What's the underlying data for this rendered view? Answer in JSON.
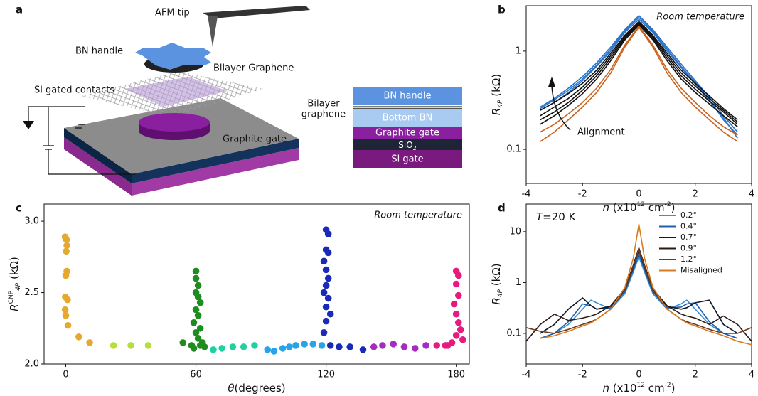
{
  "diagram": {
    "panel": "a",
    "labels": {
      "afm_tip": "AFM tip",
      "bn_handle": "BN handle",
      "bilayer_graphene": "Bilayer Graphene",
      "si_gated_contacts": "Si gated contacts",
      "graphite_gate": "Graphite gate"
    },
    "stack": {
      "bn_handle": "BN handle",
      "bilayer": "Bilayer",
      "graphene": "graphene",
      "bottom_bn": "Bottom BN",
      "graphite_gate": "Graphite gate",
      "sio2": [
        "SiO",
        "2"
      ],
      "si_gate": "Si gate"
    }
  },
  "chart_data": [
    {
      "type": "line",
      "panel": "b",
      "yscale": "log",
      "annotation": "Room temperature",
      "arrow_label": "Alignment",
      "ylabel": {
        "symbol": "R",
        "sub": "4P",
        "unit": " (kΩ)"
      },
      "xlabel": {
        "var": "n",
        "pre": " (x10",
        "exp": "12",
        "unit": " cm",
        "unit_exp": "-2",
        "post": ")"
      },
      "xlim": [
        -4,
        4
      ],
      "xticks": [
        -4,
        -2,
        0,
        2,
        4
      ],
      "ylim": [
        0.045,
        2.9
      ],
      "yticks": [
        0.1,
        1
      ],
      "x": [
        -3.5,
        -3,
        -2.5,
        -2,
        -1.5,
        -1,
        -0.5,
        0,
        0.5,
        1,
        1.5,
        2,
        2.5,
        3,
        3.5
      ],
      "series": [
        {
          "color": "#2a72c8",
          "values": [
            0.26,
            0.32,
            0.4,
            0.52,
            0.72,
            1.05,
            1.6,
            2.2,
            1.6,
            1.05,
            0.7,
            0.48,
            0.32,
            0.2,
            0.14
          ]
        },
        {
          "color": "#2a72c8",
          "values": [
            0.27,
            0.33,
            0.42,
            0.55,
            0.76,
            1.1,
            1.65,
            2.3,
            1.65,
            1.1,
            0.74,
            0.5,
            0.34,
            0.22,
            0.15
          ]
        },
        {
          "color": "#2a72c8",
          "values": [
            0.25,
            0.3,
            0.38,
            0.5,
            0.7,
            1.0,
            1.55,
            2.1,
            1.55,
            1.0,
            0.68,
            0.46,
            0.31,
            0.21,
            0.13
          ]
        },
        {
          "color": "#111111",
          "values": [
            0.25,
            0.3,
            0.37,
            0.47,
            0.64,
            0.95,
            1.45,
            2.0,
            1.45,
            0.95,
            0.64,
            0.47,
            0.35,
            0.26,
            0.2
          ]
        },
        {
          "color": "#111111",
          "values": [
            0.22,
            0.27,
            0.33,
            0.43,
            0.6,
            0.9,
            1.4,
            1.95,
            1.4,
            0.9,
            0.6,
            0.44,
            0.33,
            0.25,
            0.19
          ]
        },
        {
          "color": "#111111",
          "values": [
            0.2,
            0.24,
            0.3,
            0.4,
            0.56,
            0.85,
            1.35,
            1.9,
            1.35,
            0.85,
            0.56,
            0.41,
            0.31,
            0.24,
            0.18
          ]
        },
        {
          "color": "#111111",
          "values": [
            0.18,
            0.22,
            0.28,
            0.37,
            0.52,
            0.8,
            1.3,
            1.85,
            1.3,
            0.8,
            0.52,
            0.38,
            0.29,
            0.22,
            0.17
          ]
        },
        {
          "color": "#c8621e",
          "values": [
            0.15,
            0.18,
            0.23,
            0.3,
            0.42,
            0.65,
            1.15,
            1.8,
            1.15,
            0.65,
            0.42,
            0.3,
            0.22,
            0.17,
            0.14
          ]
        },
        {
          "color": "#c8621e",
          "values": [
            0.12,
            0.15,
            0.2,
            0.27,
            0.38,
            0.6,
            1.1,
            1.75,
            1.1,
            0.6,
            0.38,
            0.27,
            0.2,
            0.15,
            0.12
          ]
        }
      ]
    },
    {
      "type": "scatter",
      "panel": "c",
      "annotation": "Room temperature",
      "ylabel": {
        "symbol": "R",
        "sup": "CNP",
        "sub": "4P",
        "unit": " (kΩ)"
      },
      "xlabel": {
        "var": "θ",
        "post": "(degrees)"
      },
      "xlim": [
        -10,
        186
      ],
      "xticks": [
        0,
        60,
        120,
        180
      ],
      "ylim": [
        2.0,
        3.12
      ],
      "yticks": [
        {
          "value": 2,
          "label": "2.0"
        },
        2.5,
        {
          "value": 3,
          "label": "3.0"
        }
      ],
      "series": [
        {
          "color": "#e6a92f",
          "x": [
            -0.3,
            0.3,
            0.5,
            0.2,
            0.5,
            0,
            -0.2,
            0.8,
            -0.3,
            0,
            1,
            6,
            11
          ],
          "values": [
            2.89,
            2.87,
            2.83,
            2.79,
            2.65,
            2.62,
            2.47,
            2.45,
            2.38,
            2.34,
            2.27,
            2.19,
            2.15
          ]
        },
        {
          "color": "#b5e03a",
          "x": [
            22,
            30,
            38
          ],
          "values": [
            2.13,
            2.13,
            2.13
          ]
        },
        {
          "color": "#1e8c1e",
          "x": [
            60,
            60,
            61,
            60,
            61,
            62,
            60,
            61,
            59,
            62,
            60,
            61,
            63,
            54,
            59,
            58,
            62,
            64
          ],
          "values": [
            2.65,
            2.6,
            2.55,
            2.5,
            2.47,
            2.43,
            2.38,
            2.34,
            2.29,
            2.25,
            2.22,
            2.18,
            2.15,
            2.15,
            2.11,
            2.13,
            2.13,
            2.12
          ]
        },
        {
          "color": "#1fd1a0",
          "x": [
            68,
            72,
            77,
            82,
            87
          ],
          "values": [
            2.1,
            2.11,
            2.12,
            2.12,
            2.13
          ]
        },
        {
          "color": "#29a3e8",
          "x": [
            93,
            96,
            100,
            103,
            106,
            110,
            114,
            118
          ],
          "values": [
            2.1,
            2.09,
            2.11,
            2.12,
            2.13,
            2.14,
            2.14,
            2.13
          ]
        },
        {
          "color": "#1a2ab8",
          "x": [
            120,
            121,
            120,
            121,
            119,
            120,
            121,
            120,
            119,
            121,
            120,
            122,
            120,
            119,
            122,
            126,
            131,
            137
          ],
          "values": [
            2.94,
            2.91,
            2.8,
            2.78,
            2.72,
            2.66,
            2.6,
            2.55,
            2.5,
            2.46,
            2.4,
            2.35,
            2.3,
            2.22,
            2.13,
            2.12,
            2.12,
            2.1
          ]
        },
        {
          "color": "#a52bc4",
          "x": [
            142,
            146,
            151,
            156,
            161,
            166
          ],
          "values": [
            2.12,
            2.13,
            2.14,
            2.12,
            2.11,
            2.13
          ]
        },
        {
          "color": "#e8197f",
          "x": [
            171,
            175,
            180,
            181,
            180,
            181,
            179,
            180,
            181,
            182,
            180,
            183,
            178,
            176
          ],
          "values": [
            2.13,
            2.13,
            2.65,
            2.62,
            2.56,
            2.48,
            2.42,
            2.35,
            2.29,
            2.24,
            2.2,
            2.17,
            2.15,
            2.13
          ]
        }
      ]
    },
    {
      "type": "line",
      "panel": "d",
      "yscale": "log",
      "annotation": {
        "var": "T",
        "rest": "=20 K"
      },
      "legend": "upper right",
      "ylabel": {
        "symbol": "R",
        "sub": "4P",
        "unit": " (kΩ)"
      },
      "xlabel": {
        "var": "n",
        "pre": " (x10",
        "exp": "12",
        "unit": " cm",
        "unit_exp": "-2",
        "post": ")"
      },
      "xlim": [
        -4,
        4
      ],
      "xticks": [
        -4,
        -2,
        0,
        2,
        4
      ],
      "ylim": [
        0.025,
        35
      ],
      "yticks": [
        0.1,
        1,
        10
      ],
      "x": [
        -4,
        -3.5,
        -3,
        -2.5,
        -2,
        -1.7,
        -1.5,
        -1,
        -0.5,
        -0.2,
        0,
        0.2,
        0.5,
        1,
        1.5,
        1.7,
        2,
        2.5,
        3,
        3.5,
        4
      ],
      "series": [
        {
          "name": "0.2°",
          "color": "#3a8fd6",
          "values": [
            null,
            0.08,
            0.1,
            0.15,
            0.3,
            0.45,
            0.4,
            0.3,
            0.6,
            1.6,
            3.2,
            1.6,
            0.6,
            0.3,
            0.38,
            0.45,
            0.3,
            0.15,
            0.1,
            0.08,
            null
          ]
        },
        {
          "name": "0.4°",
          "color": "#1f5fae",
          "values": [
            null,
            0.08,
            0.1,
            0.17,
            0.38,
            0.35,
            0.3,
            0.32,
            0.65,
            1.8,
            3.6,
            1.8,
            0.65,
            0.32,
            0.33,
            0.38,
            0.4,
            0.17,
            0.1,
            0.08,
            null
          ]
        },
        {
          "name": "0.7°",
          "color": "#111827",
          "values": [
            null,
            0.1,
            0.15,
            0.3,
            0.5,
            0.35,
            0.3,
            0.34,
            0.7,
            2,
            4.3,
            2,
            0.7,
            0.34,
            0.3,
            0.32,
            0.4,
            0.45,
            0.15,
            0.1,
            null
          ]
        },
        {
          "name": "0.9°",
          "color": "#2b1a14",
          "values": [
            0.07,
            0.15,
            0.24,
            0.18,
            0.2,
            0.22,
            0.24,
            0.35,
            0.75,
            2.2,
            4.8,
            2.2,
            0.75,
            0.35,
            0.24,
            0.22,
            0.2,
            0.15,
            0.22,
            0.15,
            0.07
          ]
        },
        {
          "name": "1.2°",
          "color": "#6b3a1e",
          "values": [
            0.13,
            0.11,
            0.1,
            0.12,
            0.15,
            0.17,
            0.19,
            0.3,
            0.7,
            2.1,
            4.5,
            2.1,
            0.7,
            0.3,
            0.19,
            0.17,
            0.15,
            0.12,
            0.1,
            0.1,
            0.13
          ]
        },
        {
          "name": "Misaligned",
          "color": "#d97a1e",
          "values": [
            null,
            0.08,
            0.09,
            0.11,
            0.14,
            0.16,
            0.19,
            0.3,
            0.8,
            3,
            14,
            3,
            0.8,
            0.3,
            0.19,
            0.16,
            0.14,
            0.11,
            0.09,
            0.07,
            0.06
          ]
        }
      ]
    }
  ]
}
